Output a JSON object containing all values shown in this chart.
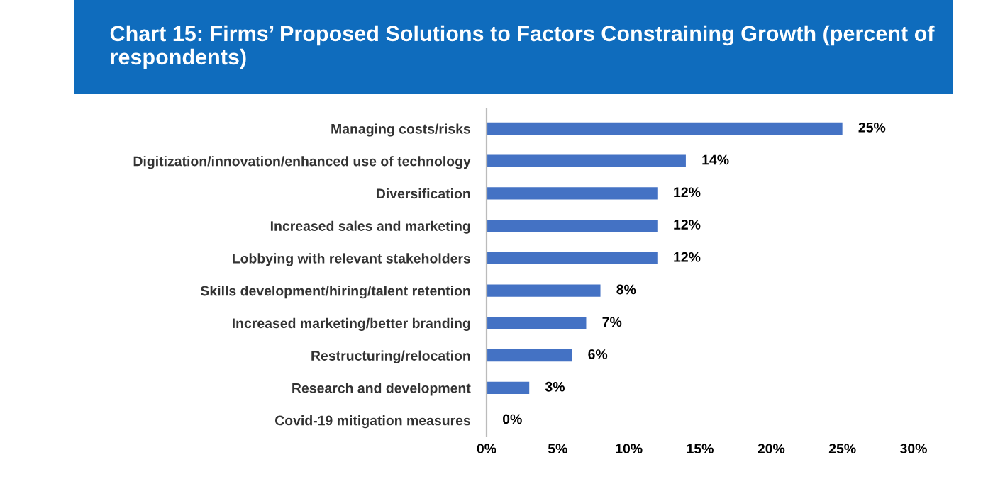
{
  "chart_data": {
    "type": "bar",
    "orientation": "horizontal",
    "title": "Chart 15: Firms’ Proposed Solutions to Factors Constraining Growth (percent of respondents)",
    "categories": [
      "Managing costs/risks",
      "Digitization/innovation/enhanced use of technology",
      "Diversification",
      "Increased sales and marketing",
      "Lobbying with relevant stakeholders",
      "Skills development/hiring/talent retention",
      "Increased marketing/better branding",
      "Restructuring/relocation",
      "Research and development",
      "Covid-19 mitigation measures"
    ],
    "values": [
      25,
      14,
      12,
      12,
      12,
      8,
      7,
      6,
      3,
      0
    ],
    "value_labels": [
      "25%",
      "14%",
      "12%",
      "12%",
      "12%",
      "8%",
      "7%",
      "6%",
      "3%",
      "0%"
    ],
    "color": "#4472c4",
    "xlim": [
      0,
      30
    ],
    "xticks": [
      {
        "value": 0,
        "label": "0%"
      },
      {
        "value": 5,
        "label": "5%"
      },
      {
        "value": 10,
        "label": "10%"
      },
      {
        "value": 15,
        "label": "15%"
      },
      {
        "value": 20,
        "label": "20%"
      },
      {
        "value": 25,
        "label": "25%"
      },
      {
        "value": 30,
        "label": "30%"
      }
    ],
    "grid": false,
    "legend": false
  }
}
